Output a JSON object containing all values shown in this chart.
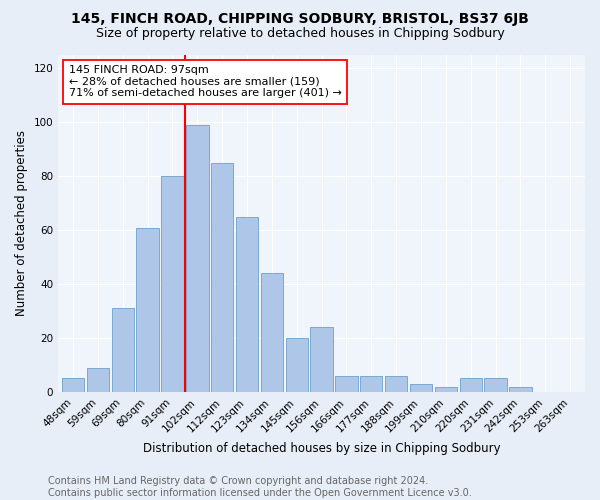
{
  "title": "145, FINCH ROAD, CHIPPING SODBURY, BRISTOL, BS37 6JB",
  "subtitle": "Size of property relative to detached houses in Chipping Sodbury",
  "xlabel": "Distribution of detached houses by size in Chipping Sodbury",
  "ylabel": "Number of detached properties",
  "footnote1": "Contains HM Land Registry data © Crown copyright and database right 2024.",
  "footnote2": "Contains public sector information licensed under the Open Government Licence v3.0.",
  "bar_labels": [
    "48sqm",
    "59sqm",
    "69sqm",
    "80sqm",
    "91sqm",
    "102sqm",
    "112sqm",
    "123sqm",
    "134sqm",
    "145sqm",
    "156sqm",
    "166sqm",
    "177sqm",
    "188sqm",
    "199sqm",
    "210sqm",
    "220sqm",
    "231sqm",
    "242sqm",
    "253sqm",
    "263sqm"
  ],
  "bar_values": [
    5,
    9,
    31,
    61,
    80,
    99,
    85,
    65,
    44,
    20,
    24,
    6,
    6,
    6,
    3,
    2,
    5,
    5,
    2,
    0,
    0
  ],
  "bar_color": "#aec6e8",
  "bar_edge_color": "#6aa0cc",
  "annotation_text_line1": "145 FINCH ROAD: 97sqm",
  "annotation_text_line2": "← 28% of detached houses are smaller (159)",
  "annotation_text_line3": "71% of semi-detached houses are larger (401) →",
  "annotation_box_color": "white",
  "annotation_box_edge_color": "red",
  "vline_color": "red",
  "vline_x": 5.5,
  "ylim": [
    0,
    125
  ],
  "yticks": [
    0,
    20,
    40,
    60,
    80,
    100,
    120
  ],
  "bg_color": "#e8eef7",
  "plot_bg_color": "#f0f4fb",
  "title_fontsize": 10,
  "subtitle_fontsize": 9,
  "xlabel_fontsize": 8.5,
  "ylabel_fontsize": 8.5,
  "tick_fontsize": 7.5,
  "annotation_fontsize": 8,
  "footnote_fontsize": 7
}
